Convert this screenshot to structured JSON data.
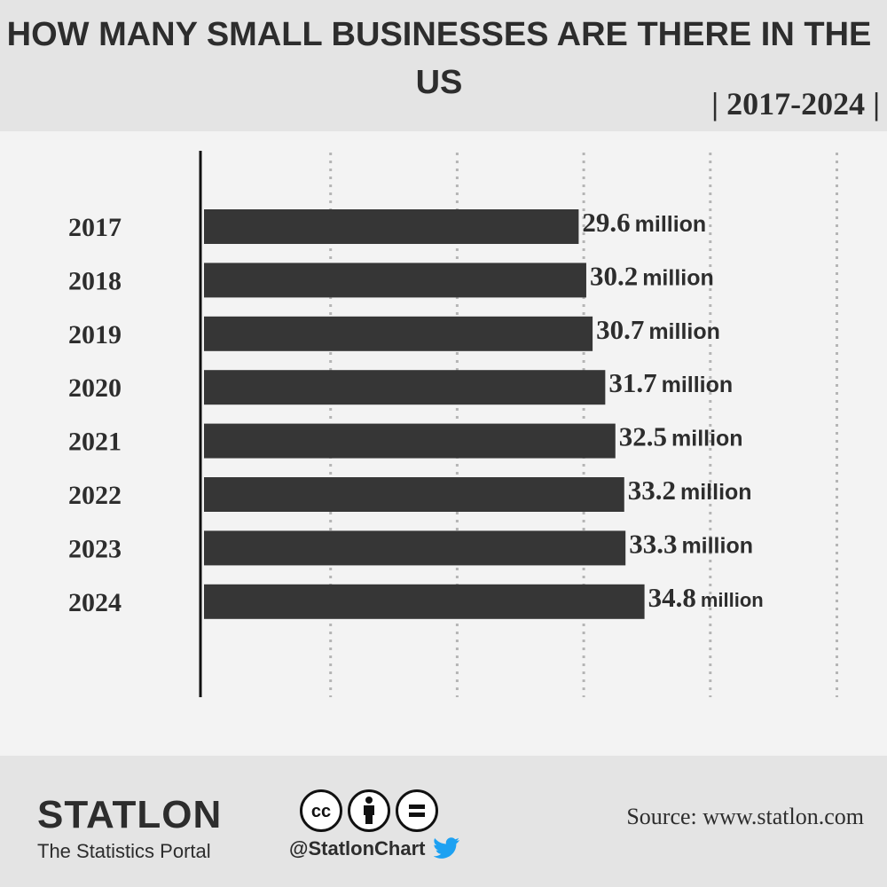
{
  "header": {
    "title": "HOW MANY SMALL BUSINESSES ARE THERE IN THE US",
    "subtitle": "| 2017-2024 |"
  },
  "chart_data": {
    "type": "bar",
    "orientation": "horizontal",
    "categories": [
      "2017",
      "2018",
      "2019",
      "2020",
      "2021",
      "2022",
      "2023",
      "2024"
    ],
    "values": [
      29.6,
      30.2,
      30.7,
      31.7,
      32.5,
      33.2,
      33.3,
      34.8
    ],
    "value_suffix": "million",
    "xlim": [
      0,
      50
    ],
    "grid": true,
    "bar_color": "#363636"
  },
  "footer": {
    "brand": "STATLON",
    "tagline": "The Statistics Portal",
    "handle": "@StatlonChart",
    "source": "Source: www.statlon.com",
    "icons": [
      "cc-icon",
      "by-icon",
      "nd-icon",
      "twitter-icon"
    ],
    "twitter_color": "#1da1f2"
  }
}
